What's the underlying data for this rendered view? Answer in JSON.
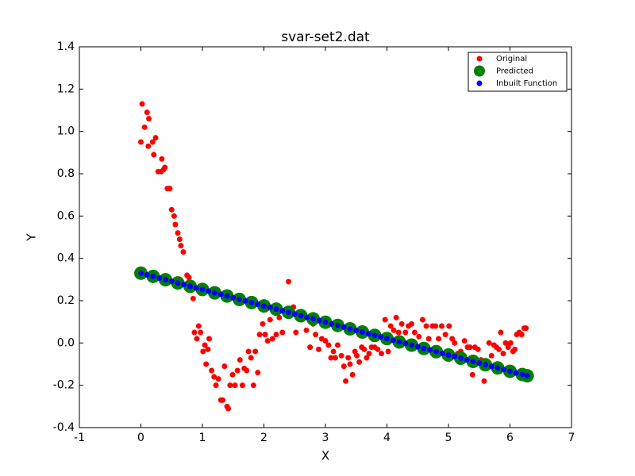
{
  "chart_data": {
    "type": "scatter",
    "title": "svar-set2.dat",
    "x_label": "X",
    "y_label": "Y",
    "xlim": [
      -1,
      7
    ],
    "ylim": [
      -0.4,
      1.4
    ],
    "xticks": [
      -1,
      0,
      1,
      2,
      3,
      4,
      5,
      6,
      7
    ],
    "yticks": [
      {
        "value": -0.4,
        "label": "-0.4"
      },
      {
        "value": -0.2,
        "label": "-0.2"
      },
      {
        "value": 0,
        "label": "0.0"
      },
      0.2,
      0.4,
      0.6,
      0.8,
      {
        "value": 1,
        "label": "1.0"
      },
      1.2,
      1.4
    ],
    "grid": false,
    "legend": "upper right",
    "series": [
      {
        "name": "Original",
        "color": "#ff0000",
        "x": [
          0.0,
          0.02,
          0.06,
          0.1,
          0.13,
          0.12,
          0.19,
          0.24,
          0.21,
          0.28,
          0.34,
          0.37,
          0.39,
          0.33,
          0.43,
          0.47,
          0.5,
          0.54,
          0.56,
          0.6,
          0.63,
          0.65,
          0.69,
          0.75,
          0.78,
          0.85,
          0.87,
          0.91,
          0.94,
          0.97,
          1.01,
          1.04,
          1.06,
          1.09,
          1.11,
          1.15,
          1.19,
          1.22,
          1.26,
          1.3,
          1.33,
          1.36,
          1.4,
          1.42,
          1.45,
          1.49,
          1.53,
          1.57,
          1.61,
          1.65,
          1.68,
          1.72,
          1.75,
          1.79,
          1.83,
          1.86,
          1.9,
          1.93,
          1.98,
          2.02,
          2.06,
          2.1,
          2.14,
          2.2,
          2.25,
          2.3,
          2.4,
          2.48,
          2.52,
          2.61,
          2.69,
          2.75,
          2.8,
          2.84,
          2.89,
          2.94,
          3.0,
          3.05,
          3.09,
          3.13,
          3.16,
          3.2,
          3.26,
          3.3,
          3.33,
          3.37,
          3.4,
          3.44,
          3.48,
          3.51,
          3.55,
          3.59,
          3.63,
          3.67,
          3.71,
          3.75,
          3.8,
          3.85,
          3.91,
          3.97,
          4.02,
          4.06,
          4.11,
          4.15,
          4.19,
          4.24,
          4.3,
          4.35,
          4.4,
          4.45,
          4.52,
          4.58,
          4.64,
          4.68,
          4.74,
          4.79,
          4.84,
          4.89,
          4.95,
          5.01,
          5.06,
          5.1,
          5.15,
          5.2,
          5.26,
          5.31,
          5.35,
          5.39,
          5.43,
          5.48,
          5.53,
          5.58,
          5.62,
          5.66,
          5.7,
          5.74,
          5.78,
          5.82,
          5.85,
          5.89,
          5.93,
          5.97,
          6.01,
          6.05,
          6.08,
          6.11,
          6.15,
          6.19,
          6.23,
          6.26
        ],
        "values": [
          0.95,
          1.13,
          1.02,
          1.09,
          1.06,
          0.93,
          0.95,
          0.97,
          0.89,
          0.81,
          0.87,
          0.82,
          0.83,
          0.81,
          0.73,
          0.73,
          0.63,
          0.6,
          0.56,
          0.52,
          0.49,
          0.46,
          0.43,
          0.32,
          0.31,
          0.21,
          0.05,
          0.02,
          0.08,
          0.05,
          -0.04,
          -0.01,
          -0.1,
          -0.03,
          0.02,
          -0.13,
          -0.16,
          -0.2,
          -0.17,
          -0.27,
          -0.27,
          -0.11,
          -0.3,
          -0.31,
          -0.2,
          -0.15,
          -0.2,
          -0.13,
          -0.08,
          -0.2,
          -0.12,
          -0.13,
          -0.04,
          -0.07,
          -0.2,
          -0.04,
          -0.14,
          0.04,
          0.09,
          0.04,
          0.01,
          0.11,
          0.02,
          0.04,
          0.12,
          0.05,
          0.29,
          0.17,
          0.05,
          0.11,
          0.06,
          -0.02,
          0.09,
          0.04,
          -0.03,
          0.02,
          0.01,
          -0.01,
          -0.07,
          -0.04,
          -0.07,
          -0.01,
          -0.06,
          -0.11,
          -0.18,
          -0.07,
          -0.1,
          -0.15,
          -0.04,
          -0.06,
          -0.09,
          -0.02,
          -0.03,
          -0.07,
          -0.05,
          -0.02,
          -0.02,
          -0.03,
          -0.05,
          0.11,
          -0.04,
          0.08,
          0.06,
          0.12,
          0.05,
          0.09,
          0.05,
          0.08,
          0.09,
          0.05,
          0.03,
          0.11,
          0.08,
          0.02,
          0.08,
          0.08,
          0.02,
          0.08,
          0.04,
          0.08,
          0.02,
          0.0,
          -0.05,
          -0.04,
          0.01,
          -0.02,
          -0.02,
          -0.15,
          -0.02,
          -0.03,
          -0.08,
          -0.18,
          -0.12,
          0.0,
          -0.06,
          -0.01,
          -0.02,
          -0.03,
          0.05,
          -0.05,
          0.0,
          -0.02,
          0.0,
          -0.04,
          -0.03,
          0.04,
          0.05,
          0.04,
          0.07,
          0.07
        ]
      },
      {
        "name": "Predicted",
        "color": "#008000",
        "x": [
          0,
          0.2,
          0.4,
          0.6,
          0.8,
          1.0,
          1.2,
          1.4,
          1.6,
          1.8,
          2.0,
          2.2,
          2.4,
          2.6,
          2.8,
          3.0,
          3.2,
          3.4,
          3.6,
          3.8,
          4.0,
          4.2,
          4.4,
          4.6,
          4.8,
          5.0,
          5.2,
          5.4,
          5.6,
          5.8,
          6.0,
          6.2,
          6.28
        ],
        "values": [
          0.33,
          0.315,
          0.299,
          0.284,
          0.268,
          0.253,
          0.237,
          0.222,
          0.206,
          0.191,
          0.175,
          0.16,
          0.145,
          0.129,
          0.114,
          0.098,
          0.083,
          0.067,
          0.052,
          0.036,
          0.021,
          0.005,
          -0.01,
          -0.026,
          -0.041,
          -0.057,
          -0.072,
          -0.087,
          -0.103,
          -0.118,
          -0.134,
          -0.149,
          -0.155
        ]
      },
      {
        "name": "Inbuilt Function",
        "color": "#0000ff",
        "x": [
          0,
          0.1,
          0.2,
          0.3,
          0.4,
          0.5,
          0.6,
          0.7,
          0.8,
          0.9,
          1.0,
          1.1,
          1.2,
          1.3,
          1.4,
          1.5,
          1.6,
          1.7,
          1.8,
          1.9,
          2.0,
          2.1,
          2.2,
          2.3,
          2.4,
          2.5,
          2.6,
          2.7,
          2.8,
          2.9,
          3.0,
          3.1,
          3.2,
          3.3,
          3.4,
          3.5,
          3.6,
          3.7,
          3.8,
          3.9,
          4.0,
          4.1,
          4.2,
          4.3,
          4.4,
          4.5,
          4.6,
          4.7,
          4.8,
          4.9,
          5.0,
          5.1,
          5.2,
          5.3,
          5.4,
          5.5,
          5.6,
          5.7,
          5.8,
          5.9,
          6.0,
          6.1,
          6.2,
          6.28
        ],
        "values": [
          0.33,
          0.322,
          0.315,
          0.307,
          0.299,
          0.291,
          0.284,
          0.276,
          0.268,
          0.26,
          0.253,
          0.245,
          0.237,
          0.23,
          0.222,
          0.214,
          0.206,
          0.199,
          0.191,
          0.183,
          0.175,
          0.168,
          0.16,
          0.152,
          0.145,
          0.137,
          0.129,
          0.121,
          0.114,
          0.106,
          0.098,
          0.09,
          0.083,
          0.075,
          0.067,
          0.059,
          0.052,
          0.044,
          0.036,
          0.029,
          0.021,
          0.013,
          0.005,
          -0.002,
          -0.01,
          -0.018,
          -0.026,
          -0.033,
          -0.041,
          -0.049,
          -0.057,
          -0.064,
          -0.072,
          -0.08,
          -0.087,
          -0.095,
          -0.103,
          -0.111,
          -0.118,
          -0.126,
          -0.134,
          -0.142,
          -0.149,
          -0.155
        ]
      }
    ]
  }
}
